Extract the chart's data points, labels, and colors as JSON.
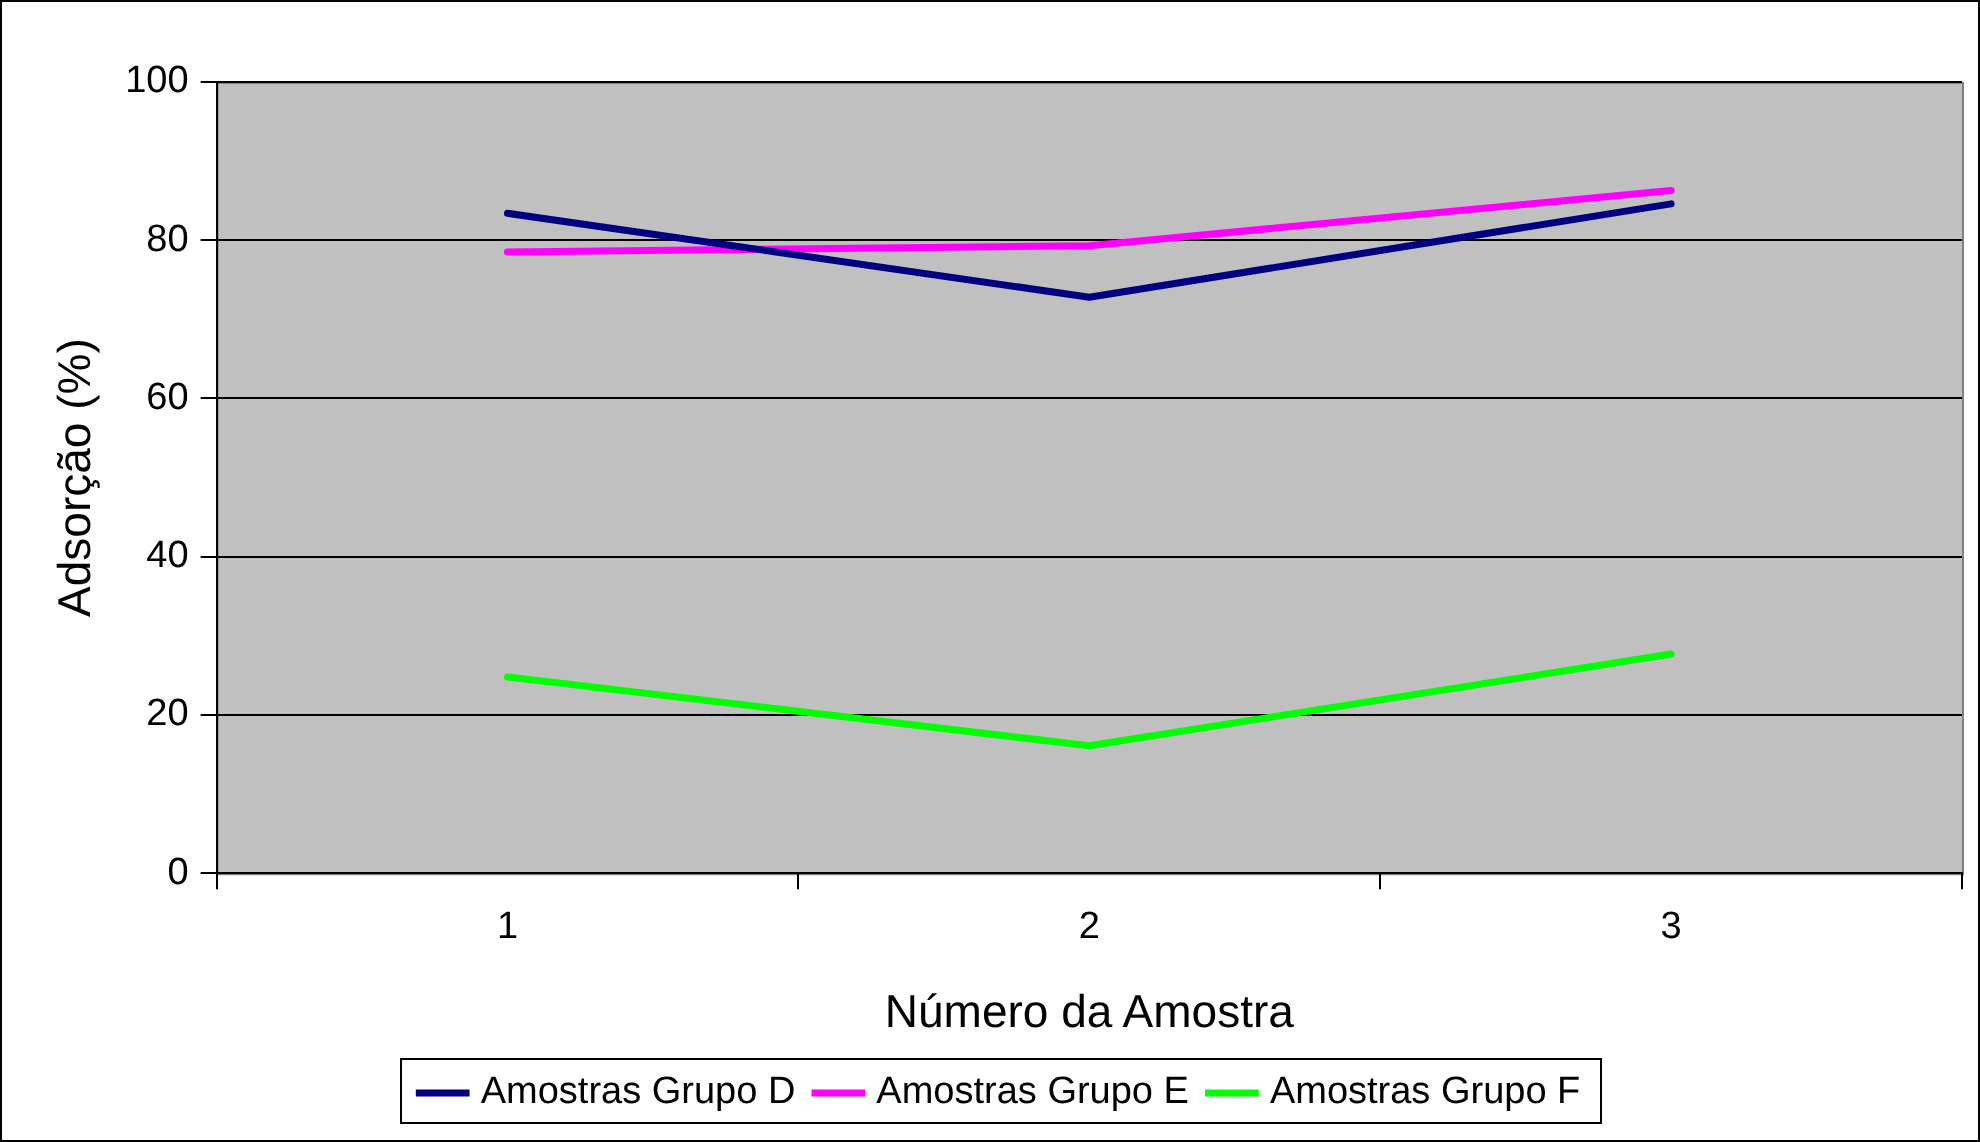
{
  "chart_data": {
    "type": "line",
    "xlabel": "Número da Amostra",
    "ylabel": "Adsorção (%)",
    "categories": [
      "1",
      "2",
      "3"
    ],
    "series": [
      {
        "name": "Amostras Grupo D",
        "color": "#000080",
        "values": [
          83.4,
          72.8,
          84.6
        ]
      },
      {
        "name": "Amostras Grupo E",
        "color": "#ff00ff",
        "values": [
          78.5,
          79.3,
          86.3
        ]
      },
      {
        "name": "Amostras Grupo F",
        "color": "#00ff00",
        "values": [
          24.8,
          16.1,
          27.7
        ]
      }
    ],
    "ylim": [
      0,
      100
    ],
    "yticks": [
      0,
      20,
      40,
      60,
      80,
      100
    ],
    "grid": "y",
    "legend": "bottom",
    "marker": "none",
    "line_style": "solid"
  }
}
